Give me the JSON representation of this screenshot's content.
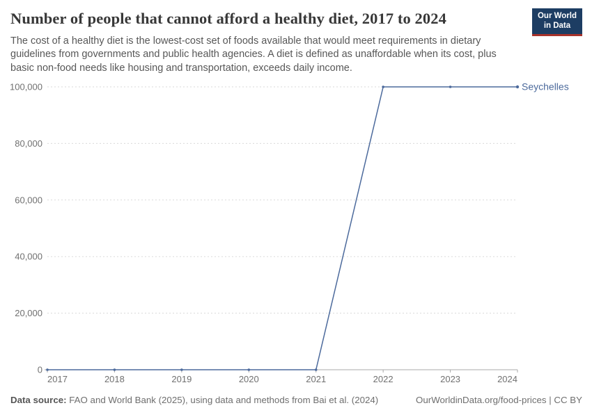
{
  "header": {
    "title": "Number of people that cannot afford a healthy diet, 2017 to 2024",
    "subtitle": "The cost of a healthy diet is the lowest-cost set of foods available that would meet requirements in dietary guidelines from governments and public health agencies. A diet is defined as unaffordable when its cost, plus basic non-food needs like housing and transportation, exceeds daily income.",
    "logo": {
      "line1": "Our World",
      "line2": "in Data",
      "bg_color": "#1d3d63",
      "stripe_color": "#a8322b"
    }
  },
  "chart_data": {
    "type": "line",
    "title": "Number of people that cannot afford a healthy diet, 2017 to 2024",
    "x": [
      2017,
      2018,
      2019,
      2020,
      2021,
      2022,
      2023,
      2024
    ],
    "xtick_labels": [
      "2017",
      "2018",
      "2019",
      "2020",
      "2021",
      "2022",
      "2023",
      "2024"
    ],
    "series": [
      {
        "name": "Seychelles",
        "values": [
          0,
          0,
          0,
          0,
          0,
          100000,
          100000,
          100000
        ],
        "color": "#4c6a9c"
      }
    ],
    "ylim": [
      0,
      100000
    ],
    "yticks": [
      0,
      20000,
      40000,
      60000,
      80000,
      100000
    ],
    "ytick_labels": [
      "0",
      "20,000",
      "40,000",
      "60,000",
      "80,000",
      "100,000"
    ],
    "xlabel": "",
    "ylabel": "",
    "grid": "horizontal-dashed",
    "legend_position": "label-at-line-end",
    "colors": {
      "gridline": "#dadada",
      "axis": "#a8a8a8",
      "tick_label": "#707070"
    }
  },
  "footer": {
    "source_label": "Data source:",
    "source_text": " FAO and World Bank (2025), using data and methods from Bai et al. (2024)",
    "credit": "OurWorldinData.org/food-prices | CC BY"
  }
}
